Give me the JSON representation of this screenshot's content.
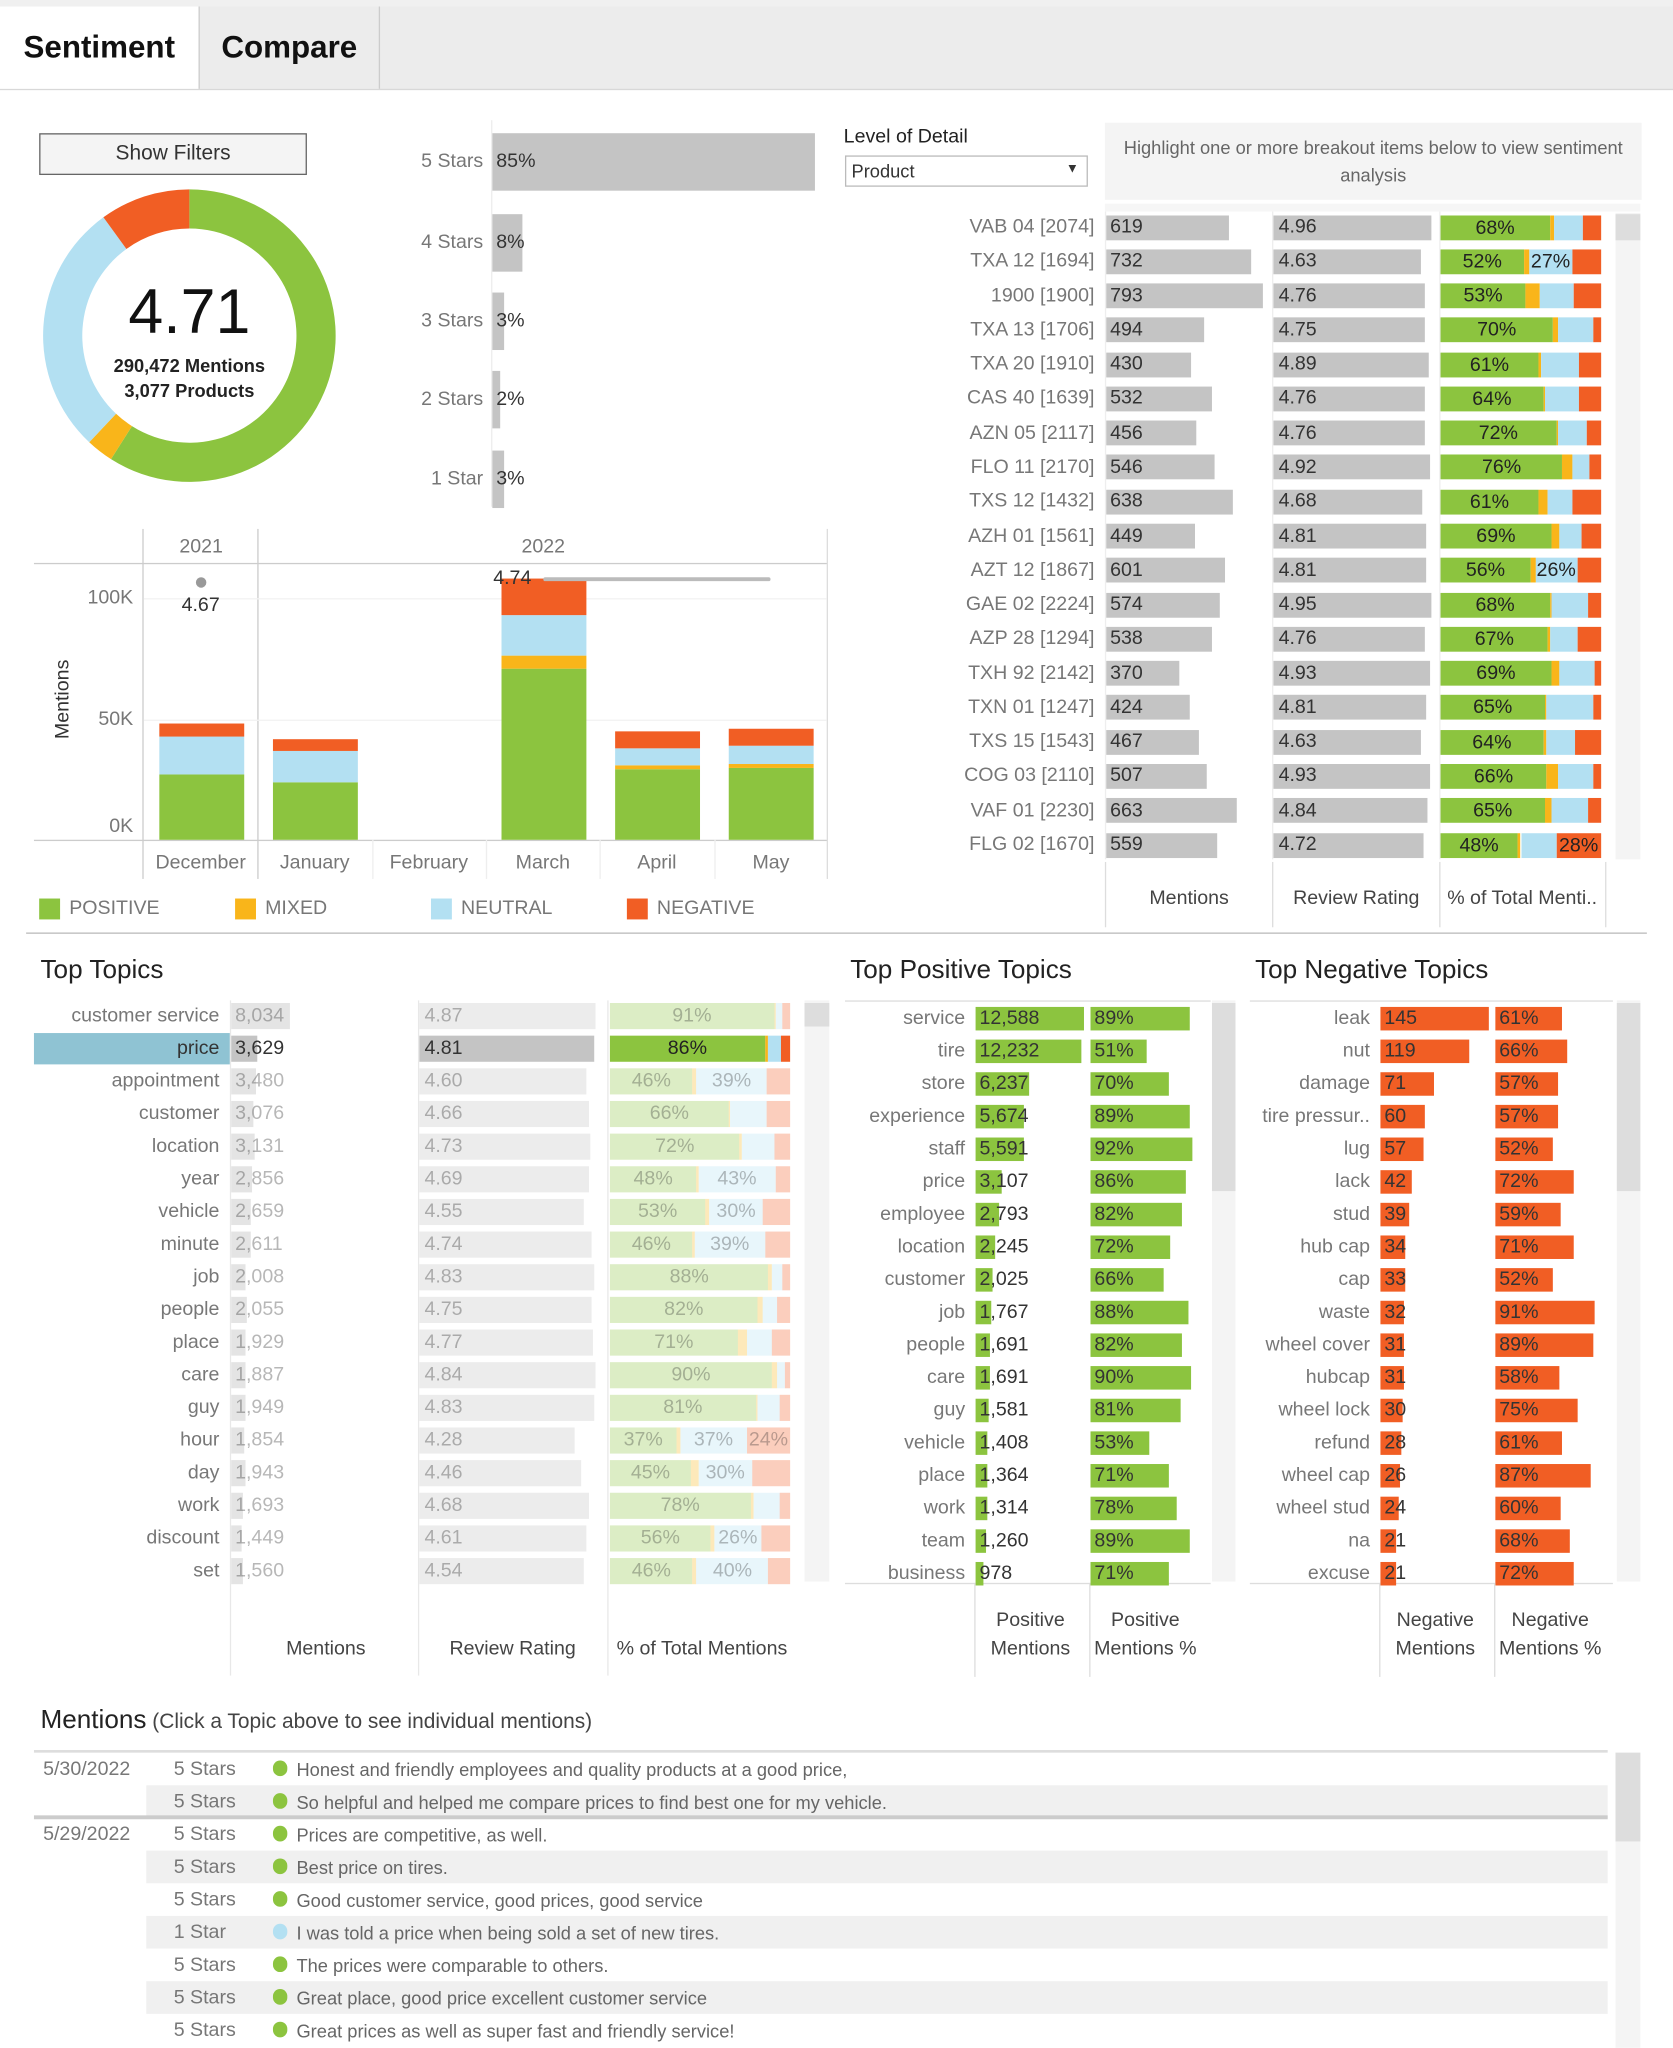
{
  "tabs": [
    {
      "label": "Sentiment",
      "active": true
    },
    {
      "label": "Compare",
      "active": false
    }
  ],
  "filters_button": "Show Filters",
  "summary": {
    "rating": "4.71",
    "mentions": "290,472 Mentions",
    "products": "3,077 Products"
  },
  "colors": {
    "positive": "#8cc43f",
    "mixed": "#f9b51a",
    "neutral": "#b3e0f2",
    "negative": "#f15e24",
    "bar": "#c4c4c4",
    "highlight": "#8fc3d3"
  },
  "level_of_detail": {
    "label": "Level of Detail",
    "value": "Product",
    "icon": "dropdown-arrow-icon"
  },
  "highlight_hint": "Highlight one or more breakout items below to view sentiment analysis",
  "products": {
    "columns": [
      "Mentions",
      "Review Rating",
      "% of Total Menti.."
    ],
    "rows": [
      {
        "name": "VAB 04 [2074]",
        "mentions": 619,
        "rating": "4.96",
        "pct": [
          68,
          3,
          18,
          11
        ],
        "labels": [
          "68%",
          "",
          "",
          ""
        ]
      },
      {
        "name": "TXA 12 [1694]",
        "mentions": 732,
        "rating": "4.63",
        "pct": [
          52,
          3,
          27,
          18
        ],
        "labels": [
          "52%",
          "",
          "27%",
          ""
        ]
      },
      {
        "name": "1900 [1900]",
        "mentions": 793,
        "rating": "4.76",
        "pct": [
          53,
          9,
          21,
          17
        ],
        "labels": [
          "53%",
          "",
          "",
          ""
        ]
      },
      {
        "name": "TXA 13 [1706]",
        "mentions": 494,
        "rating": "4.75",
        "pct": [
          70,
          3,
          22,
          5
        ],
        "labels": [
          "70%",
          "",
          "",
          ""
        ]
      },
      {
        "name": "TXA 20 [1910]",
        "mentions": 430,
        "rating": "4.89",
        "pct": [
          61,
          2,
          23,
          14
        ],
        "labels": [
          "61%",
          "",
          "",
          ""
        ]
      },
      {
        "name": "CAS 40 [1639]",
        "mentions": 532,
        "rating": "4.76",
        "pct": [
          64,
          1,
          21,
          14
        ],
        "labels": [
          "64%",
          "",
          "",
          ""
        ]
      },
      {
        "name": "AZN 05 [2117]",
        "mentions": 456,
        "rating": "4.76",
        "pct": [
          72,
          1,
          18,
          9
        ],
        "labels": [
          "72%",
          "",
          "",
          ""
        ]
      },
      {
        "name": "FLO 11 [2170]",
        "mentions": 546,
        "rating": "4.92",
        "pct": [
          76,
          6,
          11,
          7
        ],
        "labels": [
          "76%",
          "",
          "",
          ""
        ]
      },
      {
        "name": "TXS 12 [1432]",
        "mentions": 638,
        "rating": "4.68",
        "pct": [
          61,
          6,
          15,
          18
        ],
        "labels": [
          "61%",
          "",
          "",
          ""
        ]
      },
      {
        "name": "AZH 01 [1561]",
        "mentions": 449,
        "rating": "4.81",
        "pct": [
          69,
          5,
          14,
          12
        ],
        "labels": [
          "69%",
          "",
          "",
          ""
        ]
      },
      {
        "name": "AZT 12 [1867]",
        "mentions": 601,
        "rating": "4.81",
        "pct": [
          56,
          3,
          26,
          15
        ],
        "labels": [
          "56%",
          "",
          "26%",
          ""
        ]
      },
      {
        "name": "GAE 02 [2224]",
        "mentions": 574,
        "rating": "4.95",
        "pct": [
          68,
          1,
          23,
          8
        ],
        "labels": [
          "68%",
          "",
          "",
          ""
        ]
      },
      {
        "name": "AZP 28 [1294]",
        "mentions": 538,
        "rating": "4.76",
        "pct": [
          67,
          1,
          17,
          15
        ],
        "labels": [
          "67%",
          "",
          "",
          ""
        ]
      },
      {
        "name": "TXH 92 [2142]",
        "mentions": 370,
        "rating": "4.93",
        "pct": [
          69,
          5,
          22,
          4
        ],
        "labels": [
          "69%",
          "",
          "",
          ""
        ]
      },
      {
        "name": "TXN 01 [1247]",
        "mentions": 424,
        "rating": "4.81",
        "pct": [
          65,
          1,
          29,
          5
        ],
        "labels": [
          "65%",
          "",
          "",
          ""
        ]
      },
      {
        "name": "TXS 15 [1543]",
        "mentions": 467,
        "rating": "4.63",
        "pct": [
          64,
          2,
          18,
          16
        ],
        "labels": [
          "64%",
          "",
          "",
          ""
        ]
      },
      {
        "name": "COG 03 [2110]",
        "mentions": 507,
        "rating": "4.93",
        "pct": [
          66,
          7,
          22,
          5
        ],
        "labels": [
          "66%",
          "",
          "",
          ""
        ]
      },
      {
        "name": "VAF 01 [2230]",
        "mentions": 663,
        "rating": "4.84",
        "pct": [
          65,
          4,
          23,
          8
        ],
        "labels": [
          "65%",
          "",
          "",
          ""
        ]
      },
      {
        "name": "FLG 02 [1670]",
        "mentions": 559,
        "rating": "4.72",
        "pct": [
          48,
          2,
          22,
          28
        ],
        "labels": [
          "48%",
          "",
          "",
          "28%"
        ]
      }
    ]
  },
  "topics": {
    "title": "Top Topics",
    "columns": [
      "Mentions",
      "Review Rating",
      "% of Total Mentions"
    ],
    "selected": "price",
    "rows": [
      {
        "name": "customer service",
        "mentions": "8,034",
        "rating": "4.87",
        "pct": [
          91,
          1,
          4,
          4
        ],
        "labels": [
          "91%",
          "",
          "",
          ""
        ]
      },
      {
        "name": "price",
        "mentions": "3,629",
        "rating": "4.81",
        "pct": [
          86,
          2,
          7,
          5
        ],
        "labels": [
          "86%",
          "",
          "",
          ""
        ]
      },
      {
        "name": "appointment",
        "mentions": "3,480",
        "rating": "4.60",
        "pct": [
          46,
          2,
          39,
          13
        ],
        "labels": [
          "46%",
          "",
          "39%",
          ""
        ]
      },
      {
        "name": "customer",
        "mentions": "3,076",
        "rating": "4.66",
        "pct": [
          66,
          1,
          20,
          13
        ],
        "labels": [
          "66%",
          "",
          "",
          ""
        ]
      },
      {
        "name": "location",
        "mentions": "3,131",
        "rating": "4.73",
        "pct": [
          72,
          1,
          18,
          9
        ],
        "labels": [
          "72%",
          "",
          "",
          ""
        ]
      },
      {
        "name": "year",
        "mentions": "2,856",
        "rating": "4.69",
        "pct": [
          48,
          1,
          43,
          8
        ],
        "labels": [
          "48%",
          "",
          "43%",
          ""
        ]
      },
      {
        "name": "vehicle",
        "mentions": "2,659",
        "rating": "4.55",
        "pct": [
          53,
          2,
          30,
          15
        ],
        "labels": [
          "53%",
          "",
          "30%",
          ""
        ]
      },
      {
        "name": "minute",
        "mentions": "2,611",
        "rating": "4.74",
        "pct": [
          46,
          1,
          39,
          14
        ],
        "labels": [
          "46%",
          "",
          "39%",
          ""
        ]
      },
      {
        "name": "job",
        "mentions": "2,008",
        "rating": "4.83",
        "pct": [
          88,
          2,
          6,
          4
        ],
        "labels": [
          "88%",
          "",
          "",
          ""
        ]
      },
      {
        "name": "people",
        "mentions": "2,055",
        "rating": "4.75",
        "pct": [
          82,
          3,
          8,
          7
        ],
        "labels": [
          "82%",
          "",
          "",
          ""
        ]
      },
      {
        "name": "place",
        "mentions": "1,929",
        "rating": "4.77",
        "pct": [
          71,
          5,
          14,
          10
        ],
        "labels": [
          "71%",
          "",
          "",
          ""
        ]
      },
      {
        "name": "care",
        "mentions": "1,887",
        "rating": "4.84",
        "pct": [
          90,
          3,
          4,
          3
        ],
        "labels": [
          "90%",
          "",
          "",
          ""
        ]
      },
      {
        "name": "guy",
        "mentions": "1,949",
        "rating": "4.83",
        "pct": [
          81,
          1,
          12,
          6
        ],
        "labels": [
          "81%",
          "",
          "",
          ""
        ]
      },
      {
        "name": "hour",
        "mentions": "1,854",
        "rating": "4.28",
        "pct": [
          37,
          2,
          37,
          24
        ],
        "labels": [
          "37%",
          "",
          "37%",
          "24%"
        ]
      },
      {
        "name": "day",
        "mentions": "1,943",
        "rating": "4.46",
        "pct": [
          45,
          4,
          30,
          21
        ],
        "labels": [
          "45%",
          "",
          "30%",
          ""
        ]
      },
      {
        "name": "work",
        "mentions": "1,693",
        "rating": "4.68",
        "pct": [
          78,
          2,
          14,
          6
        ],
        "labels": [
          "78%",
          "",
          "",
          ""
        ]
      },
      {
        "name": "discount",
        "mentions": "1,449",
        "rating": "4.61",
        "pct": [
          56,
          2,
          26,
          16
        ],
        "labels": [
          "56%",
          "",
          "26%",
          ""
        ]
      },
      {
        "name": "set",
        "mentions": "1,560",
        "rating": "4.54",
        "pct": [
          46,
          2,
          40,
          12
        ],
        "labels": [
          "46%",
          "",
          "40%",
          ""
        ]
      }
    ]
  },
  "positive_topics": {
    "title": "Top Positive Topics",
    "columns": [
      "Positive\nMentions",
      "Positive\nMentions %"
    ],
    "rows": [
      {
        "name": "service",
        "mentions": "12,588",
        "pct": "89%"
      },
      {
        "name": "tire",
        "mentions": "12,232",
        "pct": "51%"
      },
      {
        "name": "store",
        "mentions": "6,237",
        "pct": "70%"
      },
      {
        "name": "experience",
        "mentions": "5,674",
        "pct": "89%"
      },
      {
        "name": "staff",
        "mentions": "5,591",
        "pct": "92%"
      },
      {
        "name": "price",
        "mentions": "3,107",
        "pct": "86%"
      },
      {
        "name": "employee",
        "mentions": "2,793",
        "pct": "82%"
      },
      {
        "name": "location",
        "mentions": "2,245",
        "pct": "72%"
      },
      {
        "name": "customer",
        "mentions": "2,025",
        "pct": "66%"
      },
      {
        "name": "job",
        "mentions": "1,767",
        "pct": "88%"
      },
      {
        "name": "people",
        "mentions": "1,691",
        "pct": "82%"
      },
      {
        "name": "care",
        "mentions": "1,691",
        "pct": "90%"
      },
      {
        "name": "guy",
        "mentions": "1,581",
        "pct": "81%"
      },
      {
        "name": "vehicle",
        "mentions": "1,408",
        "pct": "53%"
      },
      {
        "name": "place",
        "mentions": "1,364",
        "pct": "71%"
      },
      {
        "name": "work",
        "mentions": "1,314",
        "pct": "78%"
      },
      {
        "name": "team",
        "mentions": "1,260",
        "pct": "89%"
      },
      {
        "name": "business",
        "mentions": "978",
        "pct": "71%"
      }
    ]
  },
  "negative_topics": {
    "title": "Top Negative Topics",
    "columns": [
      "Negative\nMentions",
      "Negative\nMentions %"
    ],
    "rows": [
      {
        "name": "leak",
        "mentions": "145",
        "pct": "61%"
      },
      {
        "name": "nut",
        "mentions": "119",
        "pct": "66%"
      },
      {
        "name": "damage",
        "mentions": "71",
        "pct": "57%"
      },
      {
        "name": "tire pressur..",
        "mentions": "60",
        "pct": "57%"
      },
      {
        "name": "lug",
        "mentions": "57",
        "pct": "52%"
      },
      {
        "name": "lack",
        "mentions": "42",
        "pct": "72%"
      },
      {
        "name": "stud",
        "mentions": "39",
        "pct": "59%"
      },
      {
        "name": "hub cap",
        "mentions": "34",
        "pct": "71%"
      },
      {
        "name": "cap",
        "mentions": "33",
        "pct": "52%"
      },
      {
        "name": "waste",
        "mentions": "32",
        "pct": "91%"
      },
      {
        "name": "wheel cover",
        "mentions": "31",
        "pct": "89%"
      },
      {
        "name": "hubcap",
        "mentions": "31",
        "pct": "58%"
      },
      {
        "name": "wheel lock",
        "mentions": "30",
        "pct": "75%"
      },
      {
        "name": "refund",
        "mentions": "28",
        "pct": "61%"
      },
      {
        "name": "wheel cap",
        "mentions": "26",
        "pct": "87%"
      },
      {
        "name": "wheel stud",
        "mentions": "24",
        "pct": "60%"
      },
      {
        "name": "na",
        "mentions": "21",
        "pct": "68%"
      },
      {
        "name": "excuse",
        "mentions": "21",
        "pct": "72%"
      }
    ]
  },
  "mentions": {
    "title": "Mentions",
    "subtitle": "(Click a Topic above to see individual mentions)",
    "groups": [
      {
        "date": "5/30/2022",
        "items": [
          {
            "stars": "5 Stars",
            "sentiment": "positive",
            "text": "Honest and friendly employees and quality products at a good price,"
          },
          {
            "stars": "5 Stars",
            "sentiment": "positive",
            "text": "So helpful and helped me compare prices to find best one for my vehicle."
          }
        ]
      },
      {
        "date": "5/29/2022",
        "items": [
          {
            "stars": "5 Stars",
            "sentiment": "positive",
            "text": "Prices are competitive, as well."
          },
          {
            "stars": "5 Stars",
            "sentiment": "positive",
            "text": "Best price on tires."
          },
          {
            "stars": "5 Stars",
            "sentiment": "positive",
            "text": "Good customer service, good prices, good service"
          },
          {
            "stars": "1 Star",
            "sentiment": "neutral",
            "text": "I was told a price when being sold a set of new tires."
          },
          {
            "stars": "5 Stars",
            "sentiment": "positive",
            "text": "The prices were comparable to others."
          },
          {
            "stars": "5 Stars",
            "sentiment": "positive",
            "text": "Great place, good price excellent customer service"
          },
          {
            "stars": "5 Stars",
            "sentiment": "positive",
            "text": "Great prices as well as super fast and friendly service!"
          }
        ]
      }
    ]
  },
  "chart_data": [
    {
      "type": "bar",
      "stacked": true,
      "years": [
        {
          "label": "2021",
          "months": [
            "December"
          ]
        },
        {
          "label": "2022",
          "months": [
            "January",
            "February",
            "March",
            "April",
            "May"
          ]
        }
      ],
      "categories": [
        "December",
        "January",
        "February",
        "March",
        "April",
        "May"
      ],
      "ylabel": "Mentions",
      "yticks": [
        "0K",
        "50K",
        "100K"
      ],
      "ylim": [
        0,
        115000
      ],
      "grid": true,
      "series": [
        {
          "name": "POSITIVE",
          "color": "#8cc43f",
          "values": [
            27000,
            24000,
            0,
            71000,
            29000,
            29500
          ]
        },
        {
          "name": "MIXED",
          "color": "#f9b51a",
          "values": [
            0,
            0,
            0,
            5000,
            2000,
            2000
          ]
        },
        {
          "name": "NEUTRAL",
          "color": "#b3e0f2",
          "values": [
            15500,
            13000,
            0,
            17000,
            7000,
            7500
          ]
        },
        {
          "name": "NEGATIVE",
          "color": "#f15e24",
          "values": [
            5500,
            4500,
            0,
            15000,
            7000,
            7000
          ]
        }
      ],
      "rating_line": {
        "values": [
          4.67,
          null,
          null,
          4.74,
          4.74,
          4.74
        ],
        "labels": [
          "4.67",
          "",
          "",
          "4.74",
          "",
          ""
        ]
      },
      "legend_position": "bottom"
    },
    {
      "type": "pie",
      "donut": true,
      "categories": [
        "POSITIVE",
        "MIXED",
        "NEUTRAL",
        "NEGATIVE"
      ],
      "values": [
        59,
        3,
        28,
        10
      ]
    },
    {
      "type": "bar",
      "orientation": "horizontal",
      "categories": [
        "5 Stars",
        "4 Stars",
        "3 Stars",
        "2 Stars",
        "1 Star"
      ],
      "values": [
        85,
        8,
        3,
        2,
        3
      ],
      "labels": [
        "85%",
        "8%",
        "3%",
        "2%",
        "3%"
      ]
    }
  ]
}
